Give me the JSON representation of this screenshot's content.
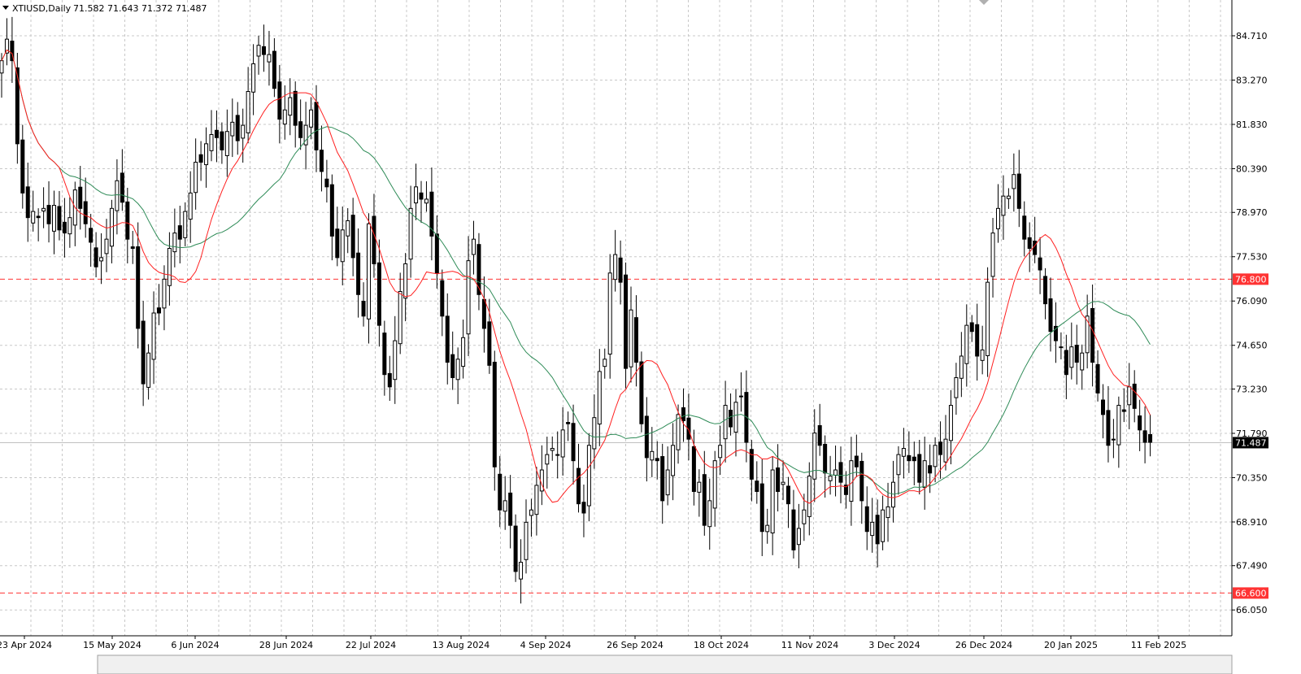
{
  "header": {
    "symbol": "XTIUSD,Daily",
    "ohlc": "71.582 71.643 71.372 71.487"
  },
  "colors": {
    "bull_body": "#ffffff",
    "bear_body": "#000000",
    "ma_fast": "#ff2020",
    "ma_slow": "#2e8b57",
    "level_line": "#ff3333",
    "current_tag": "#000000"
  },
  "chart_data": {
    "type": "candlestick",
    "title": "XTIUSD,Daily",
    "ylim": [
      65.6,
      85.6
    ],
    "grid": true,
    "y_ticks": [
      "84.710",
      "83.270",
      "81.830",
      "80.390",
      "78.970",
      "77.530",
      "76.090",
      "74.650",
      "73.230",
      "71.790",
      "70.350",
      "68.910",
      "67.490",
      "66.050"
    ],
    "x_ticks": [
      "23 Apr 2024",
      "15 May 2024",
      "6 Jun 2024",
      "28 Jun 2024",
      "22 Jul 2024",
      "13 Aug 2024",
      "4 Sep 2024",
      "26 Sep 2024",
      "18 Oct 2024",
      "11 Nov 2024",
      "3 Dec 2024",
      "26 Dec 2024",
      "20 Jan 2025",
      "11 Feb 2025"
    ],
    "levels": [
      {
        "label": "76.800",
        "value": 76.8
      },
      {
        "label": "66.600",
        "value": 66.6
      }
    ],
    "current_price": {
      "label": "71.487",
      "value": 71.487
    },
    "close": [
      83.9,
      84.6,
      83.9,
      81.2,
      79.6,
      78.8,
      79.0,
      78.8,
      79.1,
      78.6,
      79.2,
      78.4,
      78.3,
      78.8,
      79.7,
      79.1,
      78.6,
      78.0,
      77.2,
      77.5,
      78.1,
      79.1,
      80.0,
      79.3,
      78.1,
      77.8,
      75.2,
      73.4,
      74.4,
      75.7,
      75.7,
      76.8,
      77.8,
      78.3,
      78.1,
      79.0,
      79.6,
      80.6,
      80.6,
      81.2,
      81.5,
      81.4,
      81.0,
      81.6,
      81.9,
      81.3,
      81.8,
      82.9,
      83.8,
      84.4,
      84.1,
      84.1,
      83.0,
      82.0,
      82.3,
      82.7,
      81.8,
      81.4,
      81.8,
      82.3,
      81.0,
      80.3,
      79.8,
      78.2,
      77.5,
      78.4,
      78.7,
      77.5,
      76.3,
      75.6,
      78.6,
      77.3,
      75.3,
      73.7,
      73.3,
      74.8,
      76.4,
      77.3,
      79.1,
      79.8,
      79.4,
      79.4,
      78.2,
      77.0,
      75.6,
      74.1,
      73.6,
      74.2,
      74.9,
      77.4,
      78.1,
      76.3,
      75.2,
      74.0,
      70.7,
      69.3,
      69.6,
      68.8,
      67.3,
      67.6,
      68.9,
      69.3,
      70.1,
      70.6,
      71.1,
      71.3,
      71.1,
      71.9,
      72.1,
      70.9,
      69.5,
      69.2,
      71.4,
      72.3,
      73.8,
      74.2,
      77.0,
      77.6,
      76.7,
      73.9,
      75.8,
      74.1,
      72.1,
      71.0,
      71.2,
      70.9,
      69.6,
      70.6,
      71.4,
      72.4,
      72.2,
      71.6,
      69.9,
      70.2,
      68.8,
      69.6,
      70.9,
      71.4,
      72.7,
      72.0,
      72.8,
      73.0,
      71.5,
      70.3,
      69.9,
      68.6,
      68.8,
      70.6,
      69.9,
      70.2,
      69.5,
      68.0,
      68.7,
      69.3,
      70.4,
      71.8,
      71.4,
      70.5,
      70.4,
      70.6,
      70.2,
      69.8,
      70.9,
      70.7,
      69.6,
      68.6,
      68.9,
      68.2,
      69.3,
      69.4,
      70.2,
      71.1,
      71.3,
      70.9,
      70.9,
      70.2,
      70.9,
      70.5,
      71.4,
      71.1,
      71.6,
      72.7,
      73.6,
      74.3,
      75.3,
      75.1,
      74.3,
      74.5,
      76.7,
      78.3,
      79.1,
      79.5,
      79.5,
      80.2,
      79.1,
      78.1,
      77.8,
      77.6,
      77.1,
      76.0,
      75.1,
      74.8,
      74.6,
      73.7,
      74.6,
      74.1,
      74.4,
      75.6,
      74.1,
      73.1,
      72.4,
      71.4,
      71.6,
      72.7,
      72.5,
      73.3,
      72.6,
      71.9,
      71.5,
      71.5
    ]
  }
}
